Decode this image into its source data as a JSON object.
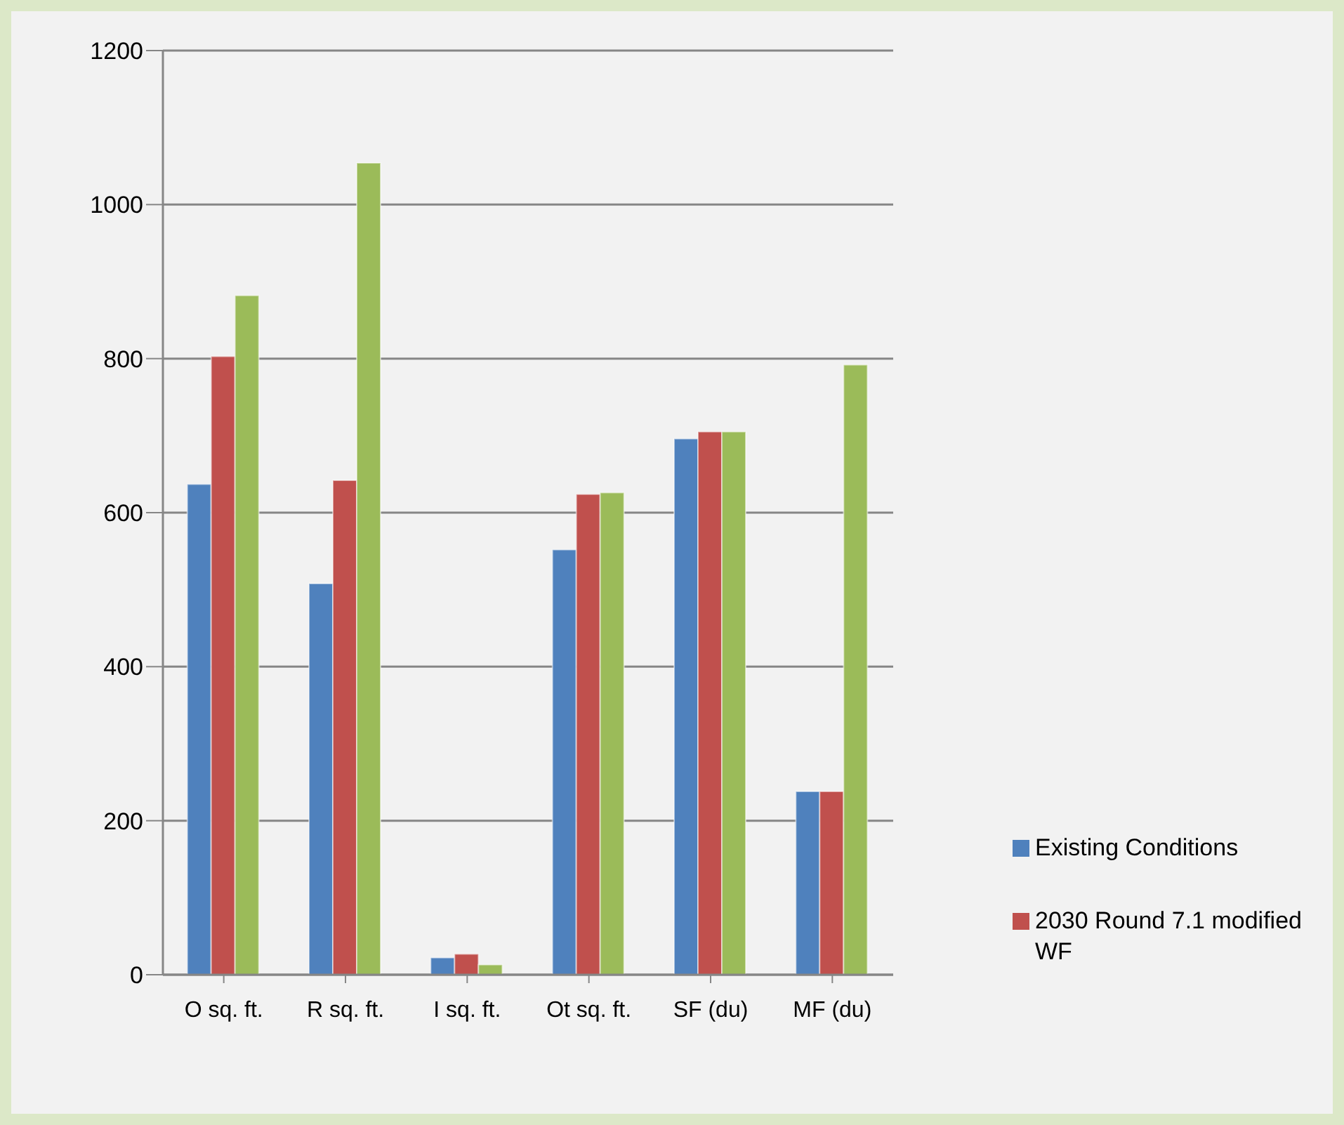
{
  "chart_data": {
    "type": "bar",
    "categories": [
      "O sq. ft.",
      "R sq. ft.",
      "I sq. ft.",
      "Ot sq. ft.",
      "SF (du)",
      "MF (du)"
    ],
    "series": [
      {
        "name": "Existing Conditions",
        "color": "#4f81bd",
        "values": [
          637,
          508,
          22,
          552,
          696,
          238
        ]
      },
      {
        "name": "2030 Round 7.1 modified WF",
        "color": "#c0504d",
        "values": [
          803,
          642,
          27,
          624,
          705,
          238
        ]
      },
      {
        "color": "#9bbb59",
        "values": [
          882,
          1054,
          13,
          626,
          705,
          792
        ]
      }
    ],
    "ylim": [
      0,
      1200
    ],
    "yticks": [
      0,
      200,
      400,
      600,
      800,
      1000,
      1200
    ],
    "grid": "y",
    "legend": "right"
  }
}
